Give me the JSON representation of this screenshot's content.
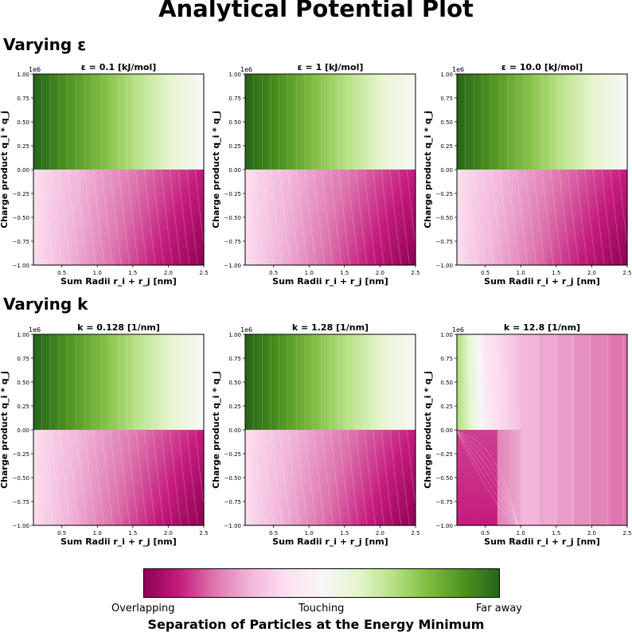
{
  "title": "Analytical Potential Plot",
  "sections": [
    {
      "label": "Varying ε"
    },
    {
      "label": "Varying k"
    }
  ],
  "axis": {
    "xlabel": "Sum Radii r_i + r_j [nm]",
    "ylabel": "Charge product q_i * q_j",
    "yscale_note": "1e6",
    "xticks": [
      "0.5",
      "1.0",
      "1.5",
      "2.0",
      "2.5"
    ],
    "yticks": [
      "1.00",
      "0.75",
      "0.50",
      "0.25",
      "0.00",
      "−0.25",
      "−0.50",
      "−0.75",
      "−1.00"
    ]
  },
  "colorbar": {
    "title": "Separation of Particles at the Energy Minimum",
    "left_label": "Overlapping",
    "mid_label": "Touching",
    "right_label": "Far away",
    "colormap": "PiYG",
    "stops": [
      "#8e0152",
      "#c51b7d",
      "#de77ae",
      "#f1b6da",
      "#fde0ef",
      "#f7f7f7",
      "#e6f5d0",
      "#b8e186",
      "#7fbc41",
      "#4d9221",
      "#276419"
    ]
  },
  "chart_data": [
    {
      "type": "heatmap",
      "title": "ε = 0.1 [kJ/mol]",
      "variant": "standard",
      "xlim": [
        0.1,
        2.5
      ],
      "ylim": [
        -1000000,
        1000000
      ]
    },
    {
      "type": "heatmap",
      "title": "ε = 1 [kJ/mol]",
      "variant": "standard",
      "xlim": [
        0.1,
        2.5
      ],
      "ylim": [
        -1000000,
        1000000
      ]
    },
    {
      "type": "heatmap",
      "title": "ε = 10.0 [kJ/mol]",
      "variant": "standard",
      "xlim": [
        0.1,
        2.5
      ],
      "ylim": [
        -1000000,
        1000000
      ]
    },
    {
      "type": "heatmap",
      "title": "k = 0.128 [1/nm]",
      "variant": "standard",
      "xlim": [
        0.1,
        2.5
      ],
      "ylim": [
        -1000000,
        1000000
      ]
    },
    {
      "type": "heatmap",
      "title": "k = 1.28 [1/nm]",
      "variant": "standard",
      "xlim": [
        0.1,
        2.5
      ],
      "ylim": [
        -1000000,
        1000000
      ]
    },
    {
      "type": "heatmap",
      "title": "k = 12.8 [1/nm]",
      "variant": "screened",
      "xlim": [
        0.1,
        2.5
      ],
      "ylim": [
        -1000000,
        1000000
      ]
    }
  ]
}
